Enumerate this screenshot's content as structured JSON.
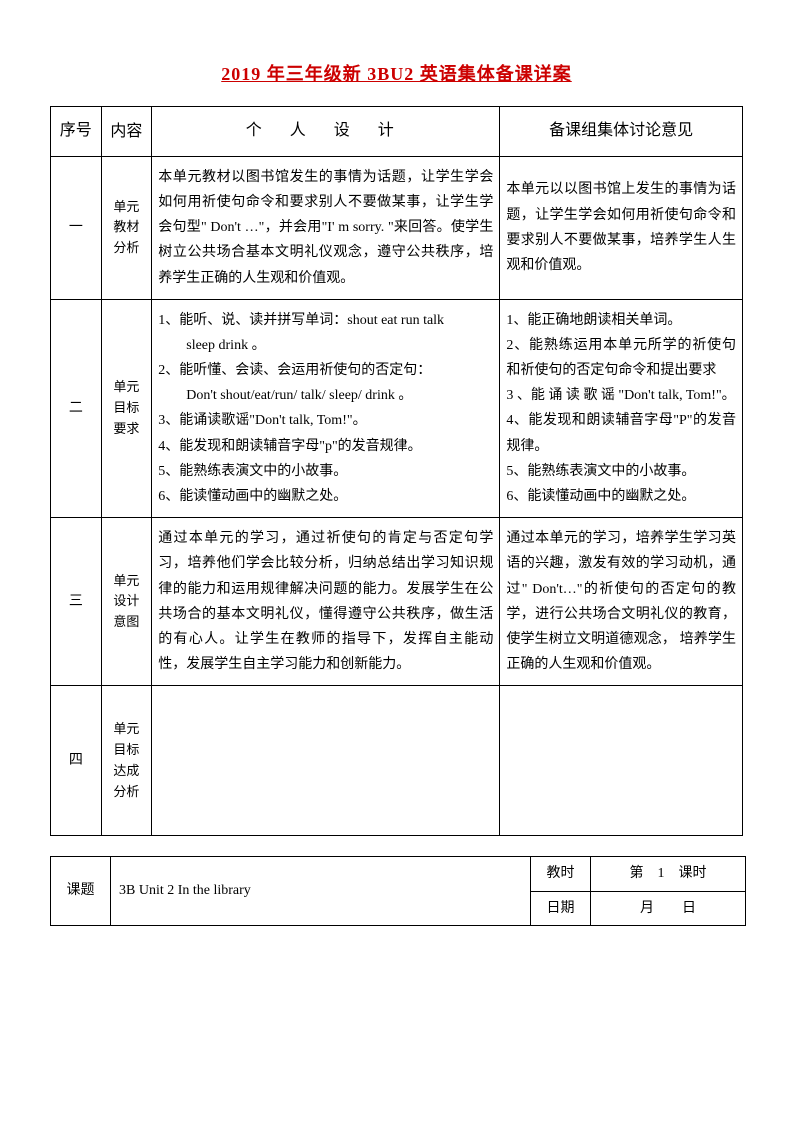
{
  "title": "2019 年三年级新 3BU2 英语集体备课详案",
  "headers": {
    "seq": "序号",
    "content": "内容",
    "personal": "个 人 设 计",
    "group": "备课组集体讨论意见"
  },
  "rows": [
    {
      "seq": "一",
      "label": "单元\n教材\n分析",
      "personal": "本单元教材以图书馆发生的事情为话题，让学生学会如何用祈使句命令和要求别人不要做某事，让学生学会句型\" Don't …\"，并会用\"I' m sorry. \"来回答。使学生树立公共场合基本文明礼仪观念，遵守公共秩序，培养学生正确的人生观和价值观。",
      "group": "本单元以以图书馆上发生的事情为话题，让学生学会如何用祈使句命令和要求别人不要做某事，培养学生人生观和价值观。"
    },
    {
      "seq": "二",
      "label": "单元\n目标\n要求",
      "personal": "1、能听、说、读并拼写单词：shout eat run talk\n　　sleep drink 。\n2、能听懂、会读、会运用祈使句的否定句：\n　　Don't shout/eat/run/ talk/ sleep/ drink 。\n3、能诵读歌谣\"Don't talk, Tom!\"。\n4、能发现和朗读辅音字母\"p\"的发音规律。\n5、能熟练表演文中的小故事。\n6、能读懂动画中的幽默之处。",
      "group": "1、能正确地朗读相关单词。\n2、能熟练运用本单元所学的祈使句和祈使句的否定句命令和提出要求\n3 、能 诵 读 歌 谣 \"Don't talk, Tom!\"。\n4、能发现和朗读辅音字母\"P\"的发音规律。\n5、能熟练表演文中的小故事。\n6、能读懂动画中的幽默之处。"
    },
    {
      "seq": "三",
      "label": "单元\n设计\n意图",
      "personal": "通过本单元的学习，通过祈使句的肯定与否定句学习，培养他们学会比较分析，归纳总结出学习知识规律的能力和运用规律解决问题的能力。发展学生在公共场合的基本文明礼仪，懂得遵守公共秩序，做生活的有心人。让学生在教师的指导下，发挥自主能动性，发展学生自主学习能力和创新能力。",
      "group": "通过本单元的学习，培养学生学习英语的兴趣，激发有效的学习动机，通过\" Don't…\"的祈使句的否定句的教学，进行公共场合文明礼仪的教育，使学生树立文明道德观念， 培养学生正确的人生观和价值观。"
    },
    {
      "seq": "四",
      "label": "单元\n目标\n达成\n分析",
      "personal": "",
      "group": ""
    }
  ],
  "bottom": {
    "topic_label": "课题",
    "topic_value": "3B Unit 2 In the library",
    "period_label": "教时",
    "period_value": "第　1　课时",
    "date_label": "日期",
    "date_value": "月　　日"
  },
  "colors": {
    "title_color": "#cc0000",
    "border_color": "#000000",
    "text_color": "#000000",
    "background": "#ffffff"
  }
}
